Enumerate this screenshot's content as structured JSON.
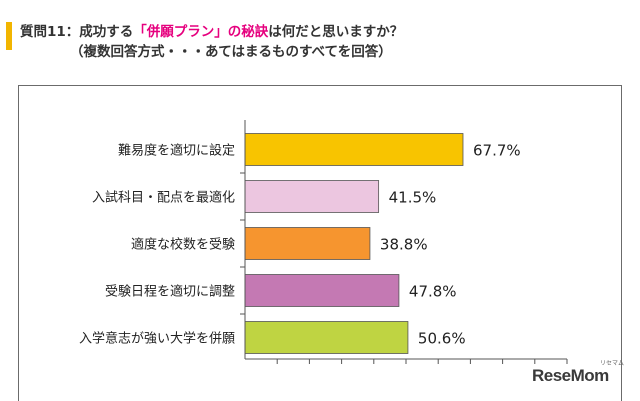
{
  "header": {
    "title_prefix": "質問11：成功する",
    "title_highlight": "「併願プラン」の秘訣",
    "title_suffix": "は何だと思いますか？",
    "subtitle": "（複数回答方式・・・あてはまるものすべてを回答）"
  },
  "colors": {
    "accent": "#f2b500",
    "highlight": "#e6007e"
  },
  "chart_data": {
    "type": "bar",
    "orientation": "horizontal",
    "categories": [
      "難易度を適切に設定",
      "入試科目・配点を最適化",
      "適度な校数を受験",
      "受験日程を適切に調整",
      "入学意志が強い大学を併願"
    ],
    "values": [
      67.7,
      41.5,
      38.8,
      47.8,
      50.6
    ],
    "value_labels": [
      "67.7%",
      "41.5%",
      "38.8%",
      "47.8%",
      "50.6%"
    ],
    "bar_colors": [
      "#f8c400",
      "#ecc6e0",
      "#f6952f",
      "#c479b3",
      "#bfd442"
    ],
    "xlim": [
      0,
      100
    ],
    "grid": false,
    "legend": "none"
  },
  "watermark": {
    "brand": "ReseMom",
    "sub": "リセマム"
  }
}
